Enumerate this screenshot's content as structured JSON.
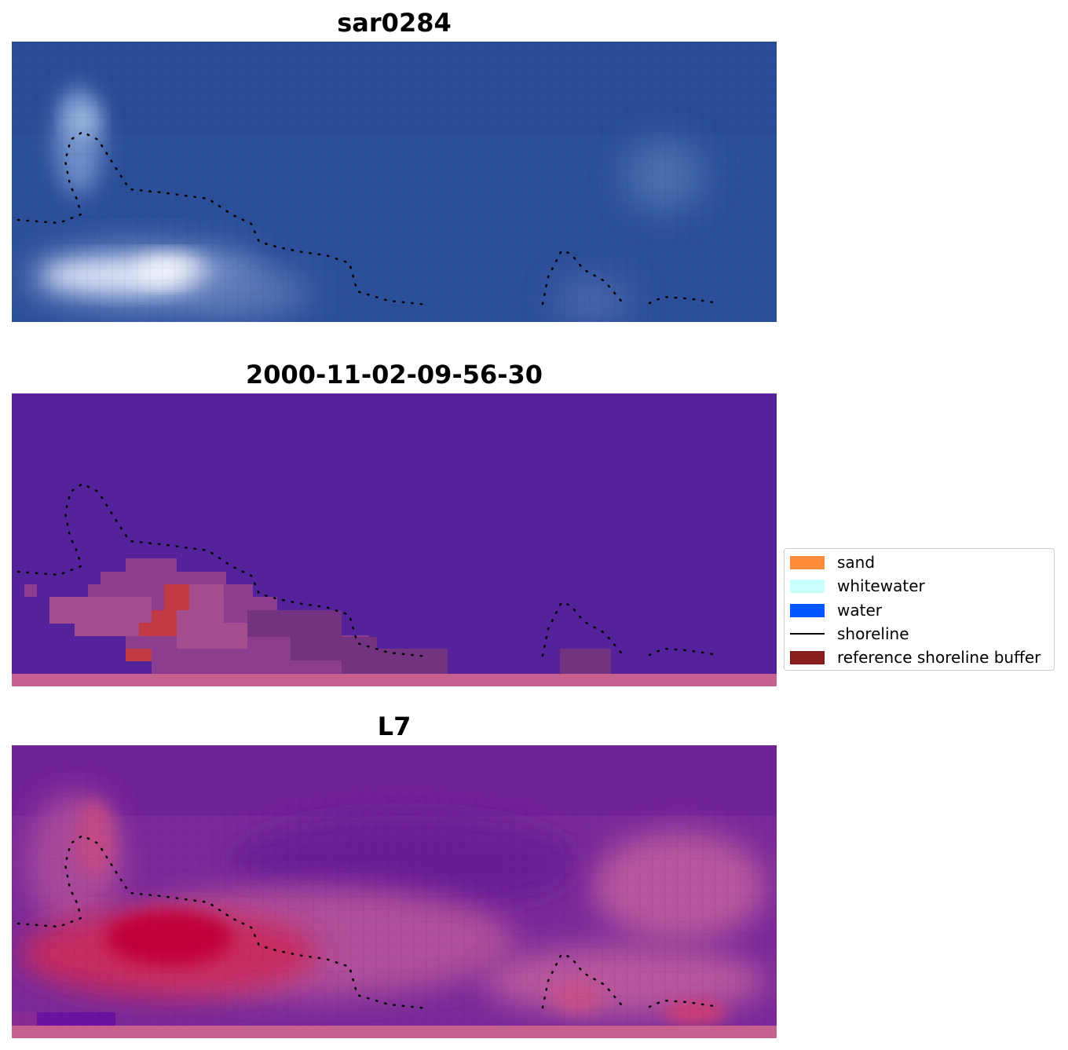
{
  "panels": [
    {
      "title": "sar0284",
      "kind": "rgb-image"
    },
    {
      "title": "2000-11-02-09-56-30",
      "kind": "classified-image"
    },
    {
      "title": "L7",
      "kind": "index-image"
    }
  ],
  "legend": {
    "items": [
      {
        "label": "sand",
        "type": "patch",
        "color": "#ff8c3a"
      },
      {
        "label": "whitewater",
        "type": "patch",
        "color": "#c8fffc"
      },
      {
        "label": "water",
        "type": "patch",
        "color": "#0057ff"
      },
      {
        "label": "shoreline",
        "type": "line",
        "color": "#000000"
      },
      {
        "label": "reference shoreline buffer",
        "type": "patch",
        "color": "#8b1e1e"
      }
    ]
  },
  "colors": {
    "rgb_water": "#2c4f9a",
    "classified_background": "#54229a",
    "index_base": "#7a2a9a",
    "buffer_strip": "#c8608f"
  }
}
